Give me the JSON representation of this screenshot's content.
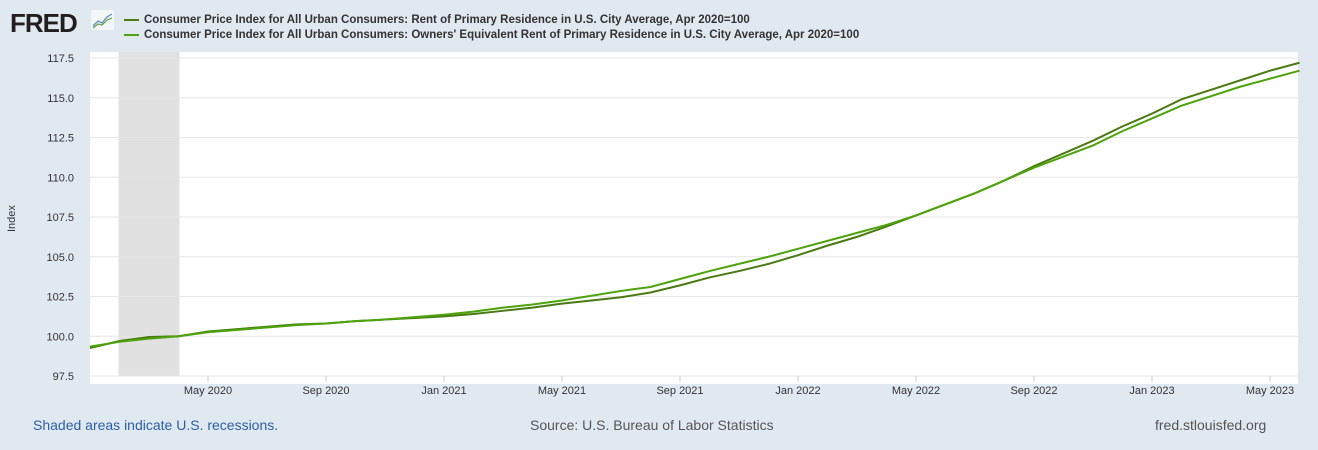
{
  "logo": "FRED",
  "chart_data": {
    "type": "line",
    "ylabel": "Index",
    "ylim": [
      97.5,
      117.5
    ],
    "yticks": [
      "97.5",
      "100.0",
      "102.5",
      "105.0",
      "107.5",
      "110.0",
      "112.5",
      "115.0",
      "117.5"
    ],
    "xtick_labels": [
      "May 2020",
      "Sep 2020",
      "Jan 2021",
      "May 2021",
      "Sep 2021",
      "Jan 2022",
      "May 2022",
      "Sep 2022",
      "Jan 2023",
      "May 2023"
    ],
    "x_start": "2020-01",
    "x_months": 42,
    "recession": {
      "start_month_index": 1,
      "end_month_index": 3
    },
    "grid": true,
    "series": [
      {
        "name": "Consumer Price Index for All Urban Consumers: Rent of Primary Residence in U.S. City Average, Apr 2020=100",
        "color": "#4a7a12",
        "values": [
          99.26,
          99.7,
          99.95,
          100,
          100.3,
          100.45,
          100.6,
          100.75,
          100.8,
          100.95,
          101.05,
          101.15,
          101.25,
          101.4,
          101.6,
          101.8,
          102.05,
          102.25,
          102.45,
          102.75,
          103.2,
          103.7,
          104.1,
          104.55,
          105.1,
          105.7,
          106.25,
          106.9,
          107.6,
          108.3,
          109.0,
          109.8,
          110.7,
          111.5,
          112.3,
          113.2,
          114.0,
          114.9,
          115.5,
          116.1,
          116.7,
          117.2
        ]
      },
      {
        "name": "Consumer Price Index for All Urban Consumers: Owners' Equivalent Rent of Primary Residence in U.S. City Average, Apr 2020=100",
        "color": "#4ca30a",
        "values": [
          99.35,
          99.65,
          99.85,
          100,
          100.25,
          100.4,
          100.55,
          100.7,
          100.8,
          100.95,
          101.05,
          101.2,
          101.35,
          101.55,
          101.8,
          102.0,
          102.25,
          102.55,
          102.85,
          103.1,
          103.6,
          104.1,
          104.55,
          105.0,
          105.5,
          106.0,
          106.5,
          107.0,
          107.6,
          108.3,
          109.0,
          109.8,
          110.6,
          111.3,
          112.0,
          112.9,
          113.7,
          114.5,
          115.1,
          115.7,
          116.2,
          116.7
        ]
      }
    ]
  },
  "footer": {
    "left": "Shaded areas indicate U.S. recessions.",
    "center": "Source: U.S. Bureau of Labor Statistics",
    "right": "fred.stlouisfed.org"
  }
}
